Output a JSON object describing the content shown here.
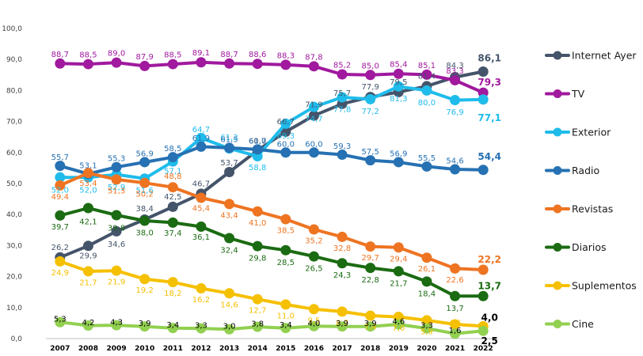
{
  "chart_data": {
    "type": "line",
    "title": "",
    "xlabel": "",
    "ylabel": "",
    "ylim": [
      0,
      100
    ],
    "yticks": [
      "0,0",
      "10,0",
      "20,0",
      "30,0",
      "40,0",
      "50,0",
      "60,0",
      "70,0",
      "80,0",
      "90,0",
      "100,0"
    ],
    "categories": [
      "2007",
      "2008",
      "2009",
      "2010",
      "2011",
      "2012",
      "2013",
      "2014",
      "2015",
      "2016",
      "2017",
      "2018",
      "2019",
      "2020",
      "2021",
      "2022"
    ],
    "legend_position": "right",
    "series": [
      {
        "name": "Internet Ayer",
        "color": "#44546A",
        "values": [
          26.2,
          29.9,
          34.6,
          38.4,
          42.5,
          46.7,
          53.7,
          60.7,
          66.7,
          71.9,
          75.7,
          77.9,
          79.5,
          81.4,
          84.3,
          86.1
        ],
        "labels": [
          "26,2",
          "29,9",
          "34,6",
          "38,4",
          "42,5",
          "46,7",
          "53,7",
          "60,7",
          "66,7",
          "71,9",
          "75,7",
          "77,9",
          "79,5",
          "81,4",
          "84,3",
          "86,1"
        ]
      },
      {
        "name": "TV",
        "color": "#A0199E",
        "values": [
          88.7,
          88.5,
          89.0,
          87.9,
          88.5,
          89.1,
          88.7,
          88.6,
          88.3,
          87.8,
          85.2,
          85.0,
          85.4,
          85.1,
          83.3,
          79.3
        ],
        "labels": [
          "88,7",
          "88,5",
          "89,0",
          "87,9",
          "88,5",
          "89,1",
          "88,7",
          "88,6",
          "88,3",
          "87,8",
          "85,2",
          "85,0",
          "85,4",
          "85,1",
          "83,3",
          "79,3"
        ]
      },
      {
        "name": "Exterior",
        "color": "#1FBCEB",
        "values": [
          52.0,
          52.0,
          52.9,
          51.6,
          57.1,
          64.7,
          61.3,
          58.8,
          69.3,
          74.7,
          77.8,
          77.2,
          81.3,
          80.0,
          76.9,
          77.1
        ],
        "labels": [
          "52,0",
          "52,0",
          "52,9",
          "51,6",
          "57,1",
          "64,7",
          "61,3",
          "58,8",
          "69,3",
          "74,7",
          "77,8",
          "77,2",
          "81,3",
          "80,0",
          "76,9",
          "77,1"
        ]
      },
      {
        "name": "Radio",
        "color": "#2671B3",
        "values": [
          55.7,
          53.1,
          55.3,
          56.9,
          58.5,
          61.9,
          61.5,
          61.0,
          60.0,
          60.0,
          59.3,
          57.5,
          56.9,
          55.5,
          54.6,
          54.4
        ],
        "labels": [
          "55,7",
          "53,1",
          "55,3",
          "56,9",
          "58,5",
          "61,9",
          "61,5",
          "61,0",
          "60,0",
          "60,0",
          "59,3",
          "57,5",
          "56,9",
          "55,5",
          "54,6",
          "54,4"
        ]
      },
      {
        "name": "Revistas",
        "color": "#EE7422",
        "values": [
          49.4,
          53.4,
          51.3,
          50.2,
          48.8,
          45.4,
          43.4,
          41.0,
          38.5,
          35.2,
          32.8,
          29.7,
          29.4,
          26.1,
          22.6,
          22.2
        ],
        "labels": [
          "49,4",
          "53,4",
          "51,3",
          "50,2",
          "48,8",
          "45,4",
          "43,4",
          "41,0",
          "38,5",
          "35,2",
          "32,8",
          "29,7",
          "29,4",
          "26,1",
          "22,6",
          "22,2"
        ]
      },
      {
        "name": "Diarios",
        "color": "#1B6B12",
        "values": [
          39.7,
          42.1,
          39.8,
          38.0,
          37.4,
          36.1,
          32.4,
          29.8,
          28.5,
          26.5,
          24.3,
          22.8,
          21.7,
          18.4,
          13.7,
          13.7
        ],
        "labels": [
          "39,7",
          "42,1",
          "39,8",
          "38,0",
          "37,4",
          "36,1",
          "32,4",
          "29,8",
          "28,5",
          "26,5",
          "24,3",
          "22,8",
          "21,7",
          "18,4",
          "13,7",
          "13,7"
        ]
      },
      {
        "name": "Suplementos",
        "color": "#F5C000",
        "values": [
          24.9,
          21.7,
          21.9,
          19.2,
          18.2,
          16.2,
          14.6,
          12.7,
          11.0,
          9.5,
          8.7,
          7.4,
          7.0,
          5.9,
          4.6,
          4.0
        ],
        "labels": [
          "24,9",
          "21,7",
          "21,9",
          "19,2",
          "18,2",
          "16,2",
          "14,6",
          "12,7",
          "11,0",
          "9,5",
          "8,7",
          "7,4",
          "7,0",
          "5,9",
          "4,6",
          "4,0"
        ]
      },
      {
        "name": "Cine",
        "color": "#92D050",
        "values": [
          5.3,
          4.2,
          4.3,
          3.9,
          3.4,
          3.3,
          3.0,
          3.8,
          3.4,
          4.0,
          3.9,
          3.9,
          4.6,
          3.3,
          1.6,
          2.5
        ],
        "labels": [
          "5,3",
          "4,2",
          "4,3",
          "3,9",
          "3,4",
          "3,3",
          "3,0",
          "3,8",
          "3,4",
          "4,0",
          "3,9",
          "3,9",
          "4,6",
          "3,3",
          "1,6",
          "2,5"
        ]
      }
    ]
  }
}
